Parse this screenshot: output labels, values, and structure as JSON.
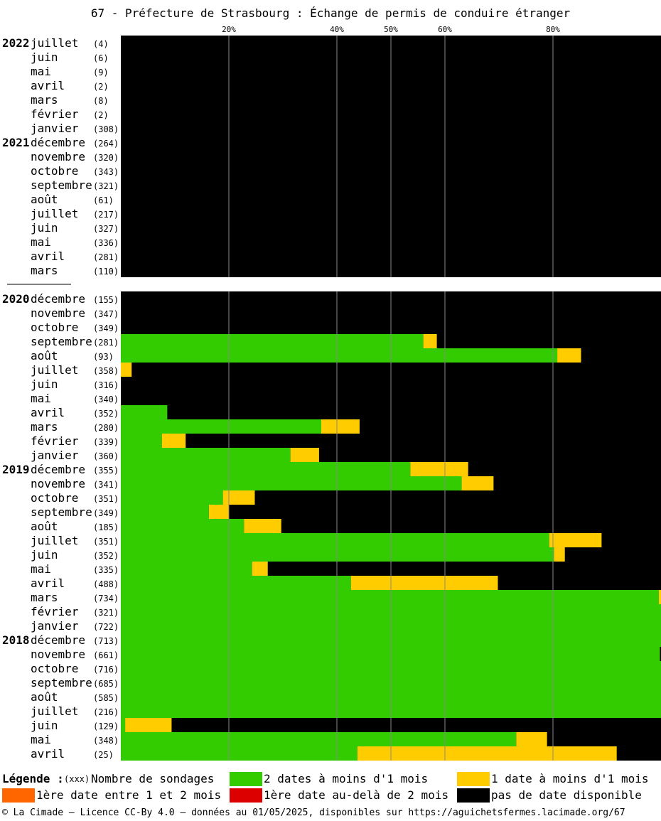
{
  "chart_data": {
    "type": "bar",
    "title": "67 - Préfecture de Strasbourg : Échange de permis de conduire étranger",
    "orientation": "horizontal-stacked",
    "x_unit": "%",
    "xlim": [
      0,
      100
    ],
    "x_ticks": [
      {
        "value": 20,
        "label": "20%"
      },
      {
        "value": 40,
        "label": "40%"
      },
      {
        "value": 50,
        "label": "50%"
      },
      {
        "value": 60,
        "label": "60%"
      },
      {
        "value": 80,
        "label": "80%"
      }
    ],
    "series_colors": {
      "green": "#33cc00",
      "yellow": "#ffcc00",
      "orange": "#ff6600",
      "red": "#dd0000",
      "black": "#000000"
    },
    "groups": [
      {
        "rows": [
          {
            "year": "2022",
            "month": "juillet",
            "count": "(4)",
            "green": 0,
            "yellow": 0
          },
          {
            "year": "",
            "month": "juin",
            "count": "(6)",
            "green": 0,
            "yellow": 0
          },
          {
            "year": "",
            "month": "mai",
            "count": "(9)",
            "green": 0,
            "yellow": 0
          },
          {
            "year": "",
            "month": "avril",
            "count": "(2)",
            "green": 0,
            "yellow": 0
          },
          {
            "year": "",
            "month": "mars",
            "count": "(8)",
            "green": 0,
            "yellow": 0
          },
          {
            "year": "",
            "month": "février",
            "count": "(2)",
            "green": 0,
            "yellow": 0
          },
          {
            "year": "",
            "month": "janvier",
            "count": "(308)",
            "green": 0,
            "yellow": 0
          },
          {
            "year": "2021",
            "month": "décembre",
            "count": "(264)",
            "green": 0,
            "yellow": 0
          },
          {
            "year": "",
            "month": "novembre",
            "count": "(320)",
            "green": 0,
            "yellow": 0
          },
          {
            "year": "",
            "month": "octobre",
            "count": "(343)",
            "green": 0,
            "yellow": 0
          },
          {
            "year": "",
            "month": "septembre",
            "count": "(321)",
            "green": 0,
            "yellow": 0
          },
          {
            "year": "",
            "month": "août",
            "count": "(61)",
            "green": 0,
            "yellow": 0
          },
          {
            "year": "",
            "month": "juillet",
            "count": "(217)",
            "green": 0,
            "yellow": 0
          },
          {
            "year": "",
            "month": "juin",
            "count": "(327)",
            "green": 0,
            "yellow": 0
          },
          {
            "year": "",
            "month": "mai",
            "count": "(336)",
            "green": 0,
            "yellow": 0
          },
          {
            "year": "",
            "month": "avril",
            "count": "(281)",
            "green": 0,
            "yellow": 0
          },
          {
            "year": "",
            "month": "mars",
            "count": "(110)",
            "green": 0,
            "yellow": 0
          }
        ]
      },
      {
        "rows": [
          {
            "year": "2020",
            "month": "décembre",
            "count": "(155)",
            "green": 0,
            "yellow": 0
          },
          {
            "year": "",
            "month": "novembre",
            "count": "(347)",
            "green": 0,
            "yellow": 0
          },
          {
            "year": "",
            "month": "octobre",
            "count": "(349)",
            "green": 0,
            "yellow": 0
          },
          {
            "year": "",
            "month": "septembre",
            "count": "(281)",
            "green": 56,
            "yellow": 2.5
          },
          {
            "year": "",
            "month": "août",
            "count": "(93)",
            "green": 80.8,
            "yellow": 4.4
          },
          {
            "year": "",
            "month": "juillet",
            "count": "(358)",
            "green": 0,
            "yellow": 2
          },
          {
            "year": "",
            "month": "juin",
            "count": "(316)",
            "green": 0,
            "yellow": 0
          },
          {
            "year": "",
            "month": "mai",
            "count": "(340)",
            "green": 0,
            "yellow": 0
          },
          {
            "year": "",
            "month": "avril",
            "count": "(352)",
            "green": 8.6,
            "yellow": 0
          },
          {
            "year": "",
            "month": "mars",
            "count": "(280)",
            "green": 37.1,
            "yellow": 7.1
          },
          {
            "year": "",
            "month": "février",
            "count": "(339)",
            "green": 7.6,
            "yellow": 4.4
          },
          {
            "year": "",
            "month": "janvier",
            "count": "(360)",
            "green": 31.4,
            "yellow": 5.3
          },
          {
            "year": "2019",
            "month": "décembre",
            "count": "(355)",
            "green": 53.6,
            "yellow": 10.7
          },
          {
            "year": "",
            "month": "novembre",
            "count": "(341)",
            "green": 63.1,
            "yellow": 5.9
          },
          {
            "year": "",
            "month": "octobre",
            "count": "(351)",
            "green": 18.9,
            "yellow": 5.9
          },
          {
            "year": "",
            "month": "septembre",
            "count": "(349)",
            "green": 16.3,
            "yellow": 3.7
          },
          {
            "year": "",
            "month": "août",
            "count": "(185)",
            "green": 22.8,
            "yellow": 6.9
          },
          {
            "year": "",
            "month": "juillet",
            "count": "(351)",
            "green": 79.3,
            "yellow": 9.7
          },
          {
            "year": "",
            "month": "juin",
            "count": "(352)",
            "green": 80.2,
            "yellow": 2
          },
          {
            "year": "",
            "month": "mai",
            "count": "(335)",
            "green": 24.3,
            "yellow": 2.9
          },
          {
            "year": "",
            "month": "avril",
            "count": "(488)",
            "green": 42.6,
            "yellow": 27.2
          },
          {
            "year": "",
            "month": "mars",
            "count": "(734)",
            "green": 99.6,
            "yellow": 0.4
          },
          {
            "year": "",
            "month": "février",
            "count": "(321)",
            "green": 100,
            "yellow": 0
          },
          {
            "year": "",
            "month": "janvier",
            "count": "(722)",
            "green": 100,
            "yellow": 0
          },
          {
            "year": "2018",
            "month": "décembre",
            "count": "(713)",
            "green": 100,
            "yellow": 0
          },
          {
            "year": "",
            "month": "novembre",
            "count": "(661)",
            "green": 99.8,
            "yellow": 0
          },
          {
            "year": "",
            "month": "octobre",
            "count": "(716)",
            "green": 100,
            "yellow": 0
          },
          {
            "year": "",
            "month": "septembre",
            "count": "(685)",
            "green": 100,
            "yellow": 0
          },
          {
            "year": "",
            "month": "août",
            "count": "(585)",
            "green": 100,
            "yellow": 0
          },
          {
            "year": "",
            "month": "juillet",
            "count": "(216)",
            "green": 100,
            "yellow": 0
          },
          {
            "year": "",
            "month": "juin",
            "count": "(129)",
            "green": 0.8,
            "yellow": 8.6
          },
          {
            "year": "",
            "month": "mai",
            "count": "(348)",
            "green": 73.2,
            "yellow": 5.7
          },
          {
            "year": "",
            "month": "avril",
            "count": "(25)",
            "green": 43.8,
            "yellow": 48
          }
        ]
      }
    ]
  },
  "legend": {
    "title": "Légende :",
    "count_sample": "(xxx)",
    "count_label": "Nombre de sondages",
    "items": [
      {
        "label": "2 dates à moins d'1 mois",
        "color": "#33cc00"
      },
      {
        "label": "1 date à moins d'1 mois",
        "color": "#ffcc00"
      },
      {
        "label": "1ère date entre 1 et 2 mois",
        "color": "#ff6600"
      },
      {
        "label": "1ère date au-delà de 2 mois",
        "color": "#dd0000"
      },
      {
        "label": "pas de date disponible",
        "color": "#000000"
      }
    ]
  },
  "footer": "© La Cimade — Licence CC-By 4.0 — données au 01/05/2025, disponibles sur https://aguichetsfermes.lacimade.org/67"
}
